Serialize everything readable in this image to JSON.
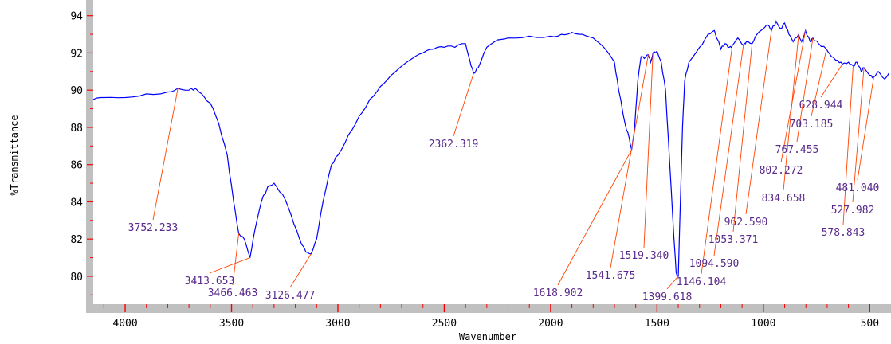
{
  "chart_data": {
    "type": "line",
    "title": "",
    "xlabel": "Wavenumber",
    "ylabel": "%Transmittance",
    "xlim": [
      4150,
      400
    ],
    "ylim": [
      78.5,
      94.5
    ],
    "x_reversed": true,
    "grid": false,
    "legend": "none",
    "xticks": [
      4000,
      3500,
      3000,
      2500,
      2000,
      1500,
      1000,
      500
    ],
    "yticks": [
      80,
      82,
      84,
      86,
      88,
      90,
      92,
      94
    ],
    "series": [
      {
        "color": "#0000ff",
        "points": [
          [
            4150,
            89.5
          ],
          [
            4100,
            89.6
          ],
          [
            4000,
            89.6
          ],
          [
            3900,
            89.8
          ],
          [
            3800,
            89.9
          ],
          [
            3752,
            90.1
          ],
          [
            3700,
            90.0
          ],
          [
            3670,
            90.1
          ],
          [
            3640,
            89.8
          ],
          [
            3600,
            89.3
          ],
          [
            3560,
            88.2
          ],
          [
            3520,
            86.5
          ],
          [
            3490,
            84.0
          ],
          [
            3466,
            82.3
          ],
          [
            3440,
            82.0
          ],
          [
            3413,
            81.0
          ],
          [
            3390,
            82.5
          ],
          [
            3360,
            84.0
          ],
          [
            3330,
            84.8
          ],
          [
            3300,
            85.0
          ],
          [
            3260,
            84.4
          ],
          [
            3220,
            83.3
          ],
          [
            3180,
            82.0
          ],
          [
            3150,
            81.3
          ],
          [
            3126,
            81.2
          ],
          [
            3100,
            82.0
          ],
          [
            3070,
            84.0
          ],
          [
            3030,
            86.0
          ],
          [
            3000,
            86.5
          ],
          [
            2950,
            87.6
          ],
          [
            2900,
            88.6
          ],
          [
            2850,
            89.5
          ],
          [
            2800,
            90.2
          ],
          [
            2750,
            90.8
          ],
          [
            2700,
            91.3
          ],
          [
            2650,
            91.7
          ],
          [
            2600,
            92.0
          ],
          [
            2550,
            92.2
          ],
          [
            2500,
            92.3
          ],
          [
            2450,
            92.3
          ],
          [
            2400,
            92.5
          ],
          [
            2380,
            91.6
          ],
          [
            2362,
            90.9
          ],
          [
            2340,
            91.2
          ],
          [
            2300,
            92.3
          ],
          [
            2250,
            92.7
          ],
          [
            2200,
            92.8
          ],
          [
            2100,
            92.9
          ],
          [
            2000,
            92.9
          ],
          [
            1950,
            93.0
          ],
          [
            1900,
            93.1
          ],
          [
            1850,
            93.0
          ],
          [
            1800,
            92.8
          ],
          [
            1750,
            92.3
          ],
          [
            1700,
            91.5
          ],
          [
            1680,
            90.0
          ],
          [
            1650,
            88.2
          ],
          [
            1630,
            87.4
          ],
          [
            1619,
            86.8
          ],
          [
            1605,
            88.0
          ],
          [
            1590,
            90.5
          ],
          [
            1575,
            91.8
          ],
          [
            1560,
            91.7
          ],
          [
            1541,
            91.9
          ],
          [
            1530,
            91.5
          ],
          [
            1519,
            92.0
          ],
          [
            1500,
            92.1
          ],
          [
            1480,
            91.5
          ],
          [
            1460,
            90.0
          ],
          [
            1440,
            86.0
          ],
          [
            1420,
            82.0
          ],
          [
            1410,
            80.2
          ],
          [
            1400,
            80.0
          ],
          [
            1390,
            84.0
          ],
          [
            1380,
            88.0
          ],
          [
            1370,
            90.5
          ],
          [
            1350,
            91.5
          ],
          [
            1300,
            92.3
          ],
          [
            1260,
            93.0
          ],
          [
            1230,
            93.2
          ],
          [
            1200,
            92.2
          ],
          [
            1180,
            92.5
          ],
          [
            1160,
            92.3
          ],
          [
            1146,
            92.4
          ],
          [
            1120,
            92.8
          ],
          [
            1094,
            92.4
          ],
          [
            1080,
            92.6
          ],
          [
            1053,
            92.5
          ],
          [
            1030,
            93.0
          ],
          [
            1000,
            93.3
          ],
          [
            980,
            93.5
          ],
          [
            962,
            93.2
          ],
          [
            940,
            93.7
          ],
          [
            920,
            93.3
          ],
          [
            900,
            93.6
          ],
          [
            880,
            93.0
          ],
          [
            860,
            92.6
          ],
          [
            834,
            93.0
          ],
          [
            820,
            92.6
          ],
          [
            802,
            93.2
          ],
          [
            780,
            92.6
          ],
          [
            767,
            92.8
          ],
          [
            740,
            92.5
          ],
          [
            703,
            92.2
          ],
          [
            680,
            91.8
          ],
          [
            650,
            91.6
          ],
          [
            628,
            91.4
          ],
          [
            600,
            91.5
          ],
          [
            578,
            91.3
          ],
          [
            560,
            91.5
          ],
          [
            540,
            91.0
          ],
          [
            527,
            91.2
          ],
          [
            500,
            90.8
          ],
          [
            481,
            90.7
          ],
          [
            460,
            91.0
          ],
          [
            430,
            90.6
          ],
          [
            410,
            90.9
          ]
        ]
      }
    ],
    "annotations": [
      {
        "label": "3752.233",
        "peak": [
          3752,
          90.1
        ]
      },
      {
        "label": "3466.463",
        "peak": [
          3466,
          82.3
        ]
      },
      {
        "label": "3413.653",
        "peak": [
          3413,
          81.0
        ]
      },
      {
        "label": "3126.477",
        "peak": [
          3126,
          81.2
        ]
      },
      {
        "label": "2362.319",
        "peak": [
          2362,
          90.9
        ]
      },
      {
        "label": "1618.902",
        "peak": [
          1619,
          86.8
        ]
      },
      {
        "label": "1541.675",
        "peak": [
          1541,
          91.9
        ]
      },
      {
        "label": "1519.340",
        "peak": [
          1519,
          92.0
        ]
      },
      {
        "label": "1399.618",
        "peak": [
          1400,
          80.0
        ]
      },
      {
        "label": "1146.104",
        "peak": [
          1146,
          92.4
        ]
      },
      {
        "label": "1094.590",
        "peak": [
          1094,
          92.4
        ]
      },
      {
        "label": "1053.371",
        "peak": [
          1053,
          92.5
        ]
      },
      {
        "label": "962.590",
        "peak": [
          962,
          93.2
        ]
      },
      {
        "label": "834.658",
        "peak": [
          834,
          93.0
        ]
      },
      {
        "label": "802.272",
        "peak": [
          802,
          93.2
        ]
      },
      {
        "label": "767.455",
        "peak": [
          767,
          92.8
        ]
      },
      {
        "label": "703.185",
        "peak": [
          703,
          92.2
        ]
      },
      {
        "label": "628.944",
        "peak": [
          628,
          91.4
        ]
      },
      {
        "label": "578.843",
        "peak": [
          578,
          91.3
        ]
      },
      {
        "label": "527.982",
        "peak": [
          527,
          91.2
        ]
      },
      {
        "label": "481.040",
        "peak": [
          481,
          90.7
        ]
      }
    ]
  }
}
